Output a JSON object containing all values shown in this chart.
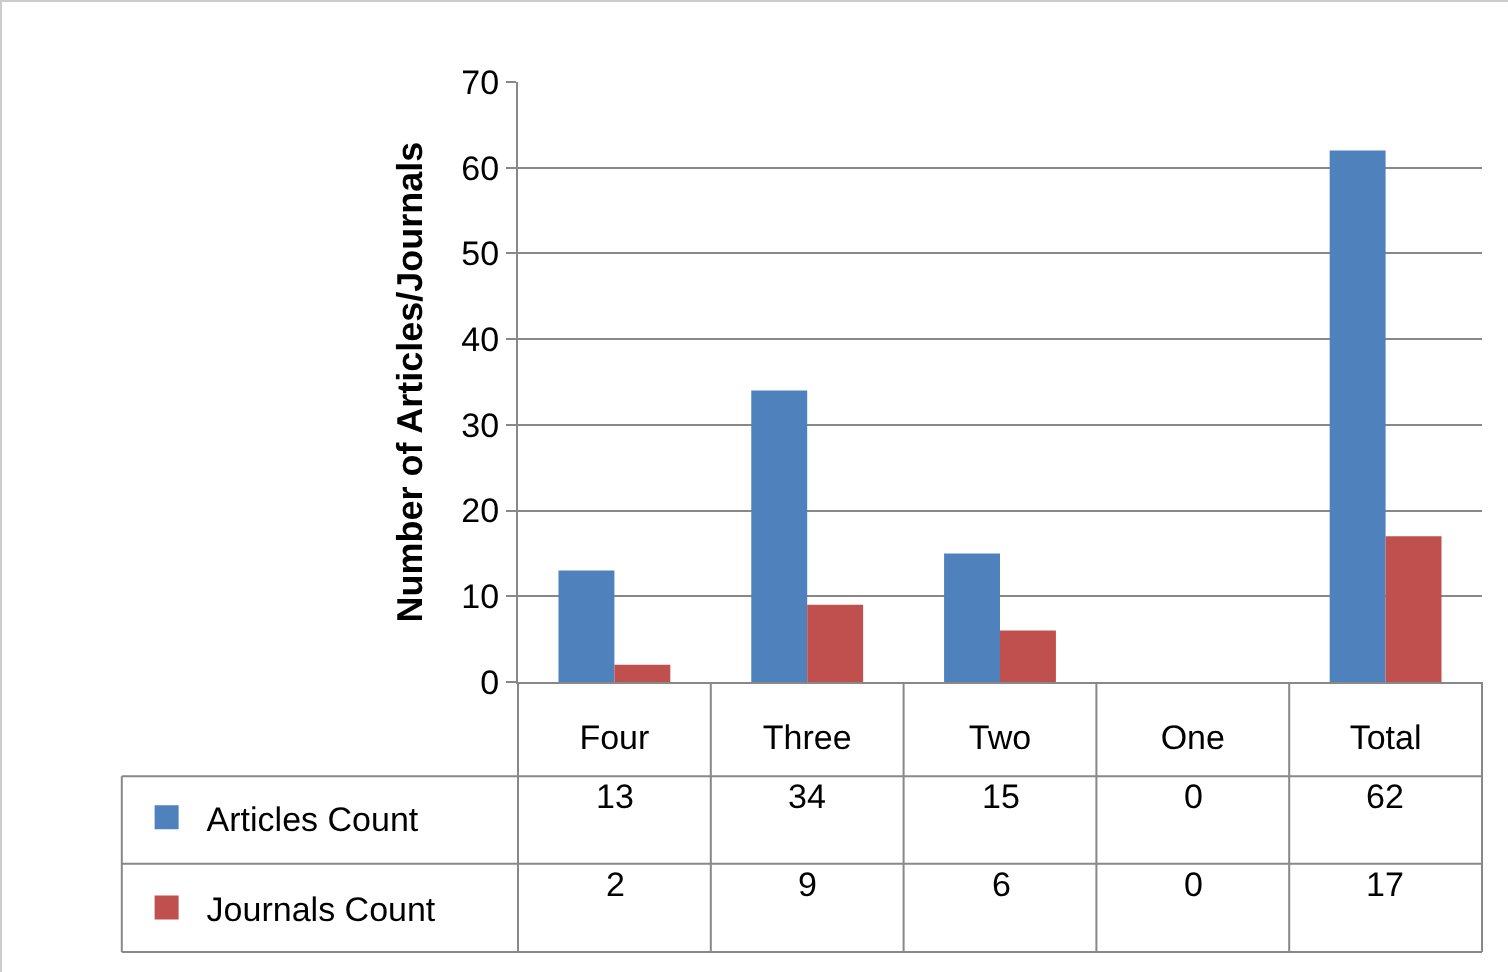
{
  "chart_data": {
    "type": "bar",
    "ylabel": "Number of Articles/Journals",
    "categories": [
      "Four",
      "Three",
      "Two",
      "One",
      "Total"
    ],
    "series": [
      {
        "name": "Articles Count",
        "color": "#4f81bd",
        "values": [
          13,
          34,
          15,
          0,
          62
        ]
      },
      {
        "name": "Journals Count",
        "color": "#c0504d",
        "values": [
          2,
          9,
          6,
          0,
          17
        ]
      }
    ],
    "ylim": [
      0,
      70
    ],
    "yticks": [
      0,
      10,
      20,
      30,
      40,
      50,
      60,
      70
    ],
    "grid": "y",
    "legend": "bottom",
    "data_labels": true
  }
}
